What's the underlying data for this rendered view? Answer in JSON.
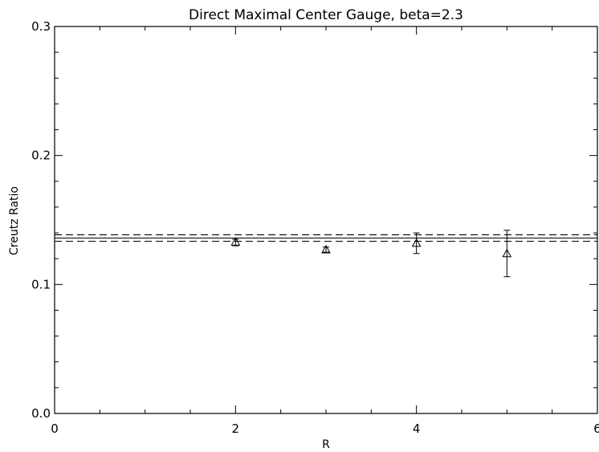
{
  "chart_data": {
    "type": "scatter",
    "title": "Direct Maximal Center Gauge, beta=2.3",
    "xlabel": "R",
    "ylabel": "Creutz Ratio",
    "xlim": [
      0,
      6
    ],
    "ylim": [
      0.0,
      0.3
    ],
    "x_ticks": [
      "0",
      "2",
      "4",
      "6"
    ],
    "y_ticks": [
      "0.0",
      "0.1",
      "0.2",
      "0.3"
    ],
    "marker": "triangle",
    "points": [
      {
        "x": 2,
        "y": 0.133,
        "yerr_low": 0.13,
        "yerr_high": 0.135
      },
      {
        "x": 3,
        "y": 0.127,
        "yerr_low": 0.125,
        "yerr_high": 0.129
      },
      {
        "x": 4,
        "y": 0.132,
        "yerr_low": 0.124,
        "yerr_high": 0.14
      },
      {
        "x": 5,
        "y": 0.124,
        "yerr_low": 0.106,
        "yerr_high": 0.142
      }
    ],
    "reference_lines": [
      {
        "y": 0.136,
        "style": "solid"
      },
      {
        "y": 0.1335,
        "style": "dashed"
      },
      {
        "y": 0.1385,
        "style": "dashed"
      }
    ],
    "grid": false,
    "legend": "none"
  }
}
